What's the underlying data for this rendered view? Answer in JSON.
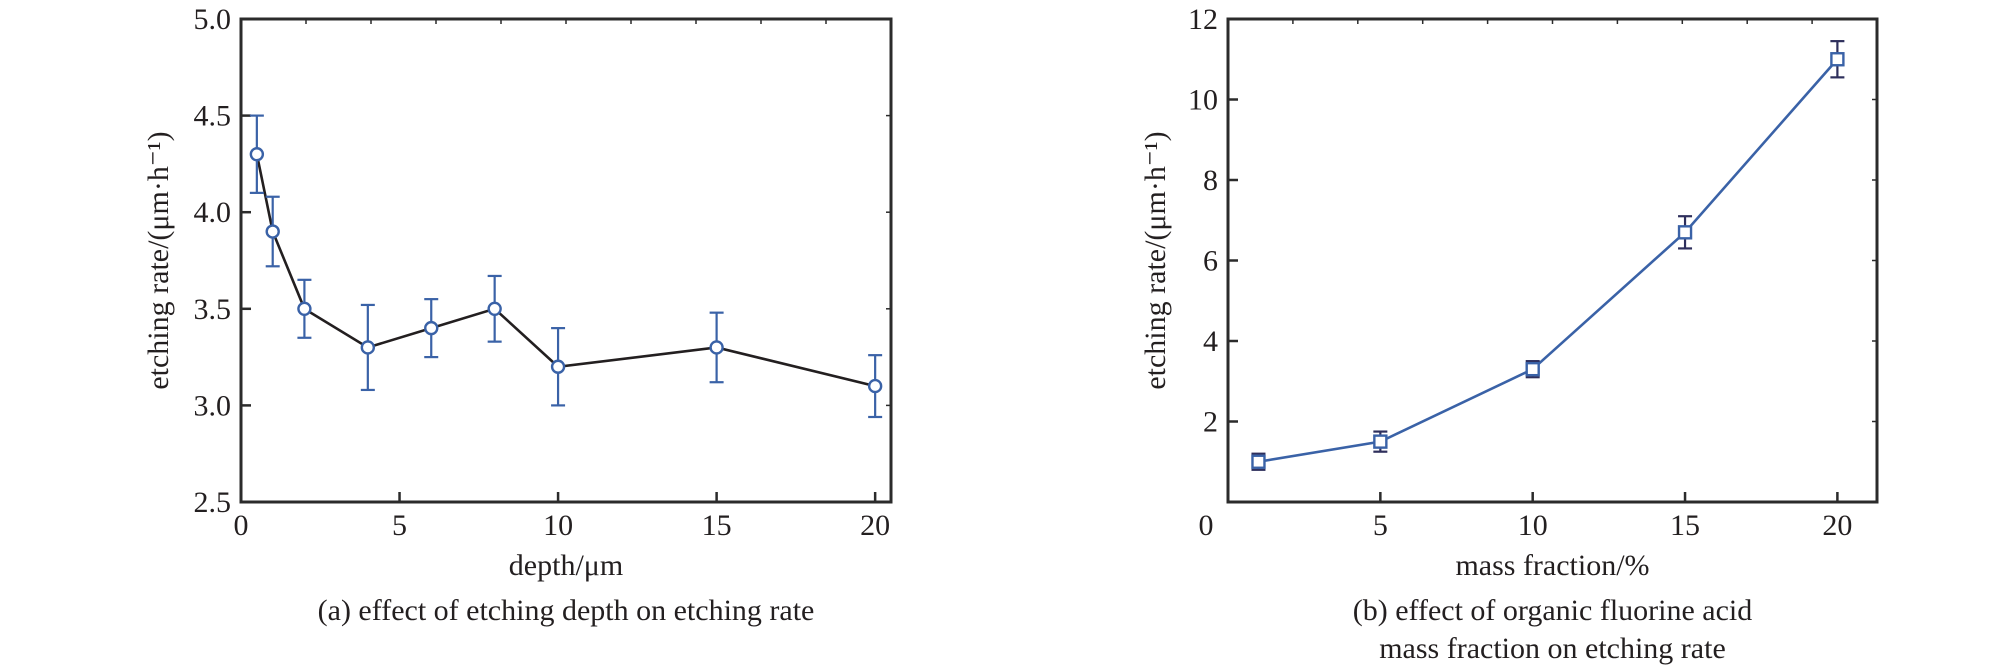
{
  "chart_data": [
    {
      "id": "a",
      "type": "line",
      "title": "",
      "caption": [
        "(a) effect of etching depth on etching rate"
      ],
      "xlabel": "depth/μm",
      "ylabel": "etching rate/(μm·h⁻¹)",
      "xlim": [
        0,
        20.5
      ],
      "ylim": [
        2.5,
        5.0
      ],
      "xticks": [
        0,
        5,
        10,
        15,
        20
      ],
      "xtick_labels": [
        "0",
        "5",
        "10",
        "15",
        "20"
      ],
      "yticks": [
        2.5,
        3.0,
        3.5,
        4.0,
        4.5,
        5.0
      ],
      "ytick_labels": [
        "2.5",
        "3.0",
        "3.5",
        "4.0",
        "4.5",
        "5.0"
      ],
      "grid": false,
      "legend": null,
      "series": [
        {
          "name": "etching rate",
          "marker": "circle",
          "line_color": "#231f20",
          "marker_color": "#3a62a7",
          "errorbar_color": "#3a62a7",
          "x": [
            0.5,
            1,
            2,
            4,
            6,
            8,
            10,
            15,
            20
          ],
          "y": [
            4.3,
            3.9,
            3.5,
            3.3,
            3.4,
            3.5,
            3.2,
            3.3,
            3.1
          ],
          "yerr": [
            0.2,
            0.18,
            0.15,
            0.22,
            0.15,
            0.17,
            0.2,
            0.18,
            0.16
          ]
        }
      ]
    },
    {
      "id": "b",
      "type": "line",
      "title": "",
      "caption": [
        "(b) effect of organic fluorine acid",
        "mass fraction on etching rate"
      ],
      "xlabel": "mass fraction/%",
      "ylabel": "etching rate/(μm·h⁻¹)",
      "xlim": [
        0,
        21.3
      ],
      "ylim": [
        0,
        12
      ],
      "xticks": [
        0,
        5,
        10,
        15,
        20
      ],
      "xtick_labels": [
        "0",
        "5",
        "10",
        "15",
        "20"
      ],
      "yticks": [
        2,
        4,
        6,
        8,
        10,
        12
      ],
      "ytick_labels": [
        "2",
        "4",
        "6",
        "8",
        "10",
        "12"
      ],
      "grid": false,
      "legend": null,
      "series": [
        {
          "name": "etching rate",
          "marker": "square",
          "line_color": "#3a62a7",
          "marker_color": "#3a62a7",
          "errorbar_color": "#2e2f5c",
          "x": [
            1,
            5,
            10,
            15,
            20
          ],
          "y": [
            1.0,
            1.5,
            3.3,
            6.7,
            11.0
          ],
          "yerr": [
            0.2,
            0.25,
            0.2,
            0.4,
            0.45
          ]
        }
      ]
    }
  ]
}
